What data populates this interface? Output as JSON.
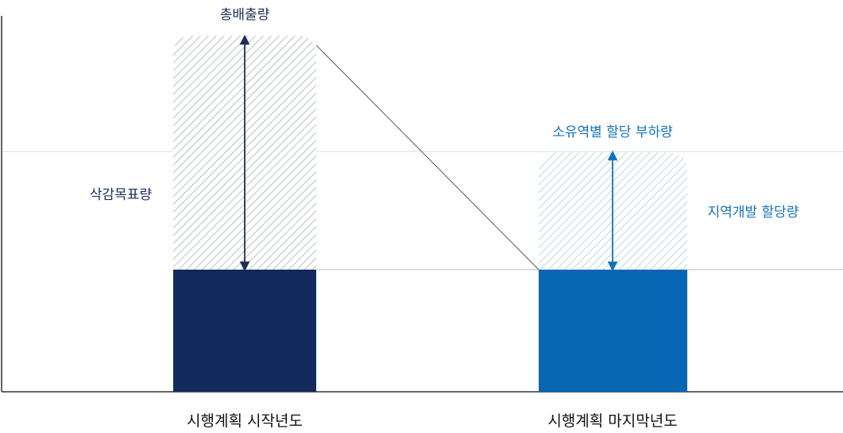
{
  "labels": {
    "total_emission": "총배출량",
    "reduction_target": "삭감목표량",
    "owner_allocation": "소유역별 할당 부하량",
    "regional_allocation": "지역개발 할당량"
  },
  "categories": [
    "시행계획 시작년도",
    "시행계획 마지막년도"
  ],
  "colors": {
    "bar_start": "#142a5e",
    "bar_end": "#0867b5",
    "label_dark": "#1d2c58",
    "label_blue": "#1272bd",
    "hatch_start": "#9aa4b8",
    "hatch_end": "#9ec3e0",
    "axis": "#333333",
    "gridline": "#dddddd",
    "connector": "#555555"
  }
}
